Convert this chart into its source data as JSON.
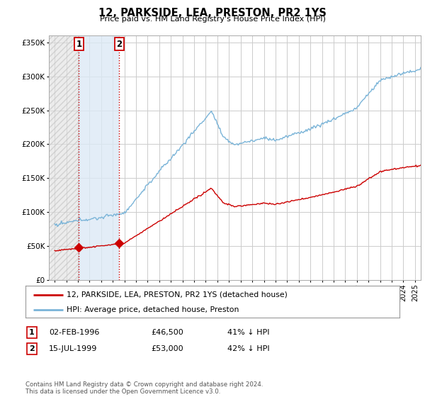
{
  "title": "12, PARKSIDE, LEA, PRESTON, PR2 1YS",
  "subtitle": "Price paid vs. HM Land Registry's House Price Index (HPI)",
  "legend_line1": "12, PARKSIDE, LEA, PRESTON, PR2 1YS (detached house)",
  "legend_line2": "HPI: Average price, detached house, Preston",
  "transaction1_label": "1",
  "transaction1_date": "02-FEB-1996",
  "transaction1_price": "£46,500",
  "transaction1_hpi": "41% ↓ HPI",
  "transaction1_year": 1996.08,
  "transaction1_value": 46500,
  "transaction2_label": "2",
  "transaction2_date": "15-JUL-1999",
  "transaction2_price": "£53,000",
  "transaction2_hpi": "42% ↓ HPI",
  "transaction2_year": 1999.54,
  "transaction2_value": 53000,
  "hpi_color": "#7ab4d8",
  "price_color": "#cc0000",
  "marker_color": "#cc0000",
  "vline_color": "#cc0000",
  "shade_color": "#dce9f5",
  "footer": "Contains HM Land Registry data © Crown copyright and database right 2024.\nThis data is licensed under the Open Government Licence v3.0.",
  "ylim_max": 360000,
  "ylim_min": 0,
  "xlim_min": 1993.5,
  "xlim_max": 2025.5
}
